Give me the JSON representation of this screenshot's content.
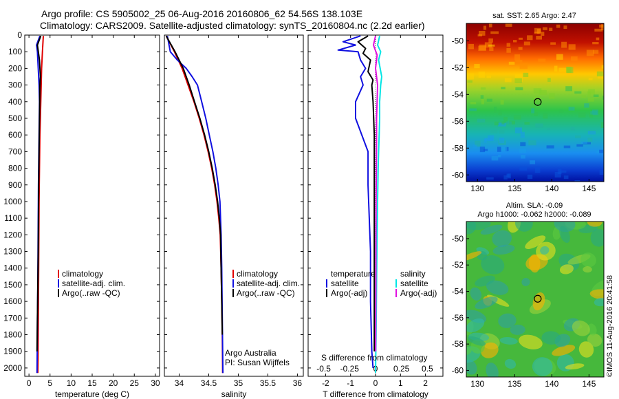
{
  "title_line1": "Argo profile: CS 5905002_25 06-Aug-2016 20160806_62 54.56S 138.103E",
  "title_line2": "Climatology: CARS2009. Satellite-adjusted climatology: synTS_20160804.nc (2.2d earlier)",
  "colors": {
    "climatology": "#e00000",
    "satellite_adj": "#1010e0",
    "argo": "#000000",
    "salinity_sat": "#00e5e5",
    "salinity_argo": "#e010e0"
  },
  "chart_data": [
    {
      "type": "line",
      "name": "temperature-panel",
      "xlabel": "temperature (deg C)",
      "xlim": [
        -1,
        31
      ],
      "ylim": [
        2050,
        0
      ],
      "xticks": [
        "0",
        "5",
        "10",
        "15",
        "20",
        "25",
        "30"
      ],
      "xtick_values": [
        0,
        5,
        10,
        15,
        20,
        25,
        30
      ],
      "yticks": [
        "0",
        "100",
        "200",
        "300",
        "400",
        "500",
        "600",
        "700",
        "800",
        "900",
        "1000",
        "1100",
        "1200",
        "1300",
        "1400",
        "1500",
        "1600",
        "1700",
        "1800",
        "1900",
        "2000"
      ],
      "ytick_values": [
        0,
        100,
        200,
        300,
        400,
        500,
        600,
        700,
        800,
        900,
        1000,
        1100,
        1200,
        1300,
        1400,
        1500,
        1600,
        1700,
        1800,
        1900,
        2000
      ],
      "legend": [
        "climatology",
        "satellite-adj. clim.",
        "Argo(..raw -QC)"
      ],
      "series": [
        {
          "key": "climatology",
          "x": [
            3.4,
            3.2,
            3.0,
            2.9,
            2.8,
            2.7,
            2.6,
            2.55,
            2.5,
            2.45,
            2.4,
            2.35,
            2.3,
            2.25,
            2.2,
            2.15,
            2.1
          ],
          "y": [
            5,
            100,
            200,
            300,
            400,
            500,
            600,
            700,
            800,
            900,
            1000,
            1200,
            1400,
            1600,
            1800,
            1950,
            2030
          ]
        },
        {
          "key": "satellite_adj",
          "x": [
            2.6,
            1.8,
            2.0,
            2.2,
            2.4,
            2.5,
            2.45,
            2.4,
            2.35,
            2.3,
            2.25,
            2.2,
            2.15,
            2.1,
            2.0,
            1.95,
            1.9
          ],
          "y": [
            5,
            60,
            100,
            200,
            300,
            400,
            500,
            600,
            700,
            800,
            900,
            1100,
            1300,
            1500,
            1700,
            1900,
            2030
          ]
        },
        {
          "key": "argo",
          "x": [
            2.8,
            2.0,
            2.5,
            2.7,
            2.6,
            2.55,
            2.5,
            2.45,
            2.4,
            2.35,
            2.3,
            2.25,
            2.2,
            2.1,
            2.0,
            1.9
          ],
          "y": [
            5,
            60,
            150,
            250,
            300,
            400,
            500,
            600,
            700,
            800,
            900,
            1100,
            1300,
            1500,
            1700,
            1900
          ]
        }
      ]
    },
    {
      "type": "line",
      "name": "salinity-panel",
      "xlabel": "salinity",
      "xlim": [
        33.75,
        36.1
      ],
      "ylim": [
        2050,
        0
      ],
      "xticks": [
        "34",
        "34.5",
        "35",
        "35.5",
        "36"
      ],
      "xtick_values": [
        34,
        34.5,
        35,
        35.5,
        36
      ],
      "legend": [
        "climatology",
        "satellite-adj. clim.",
        "Argo(..raw -QC)"
      ],
      "annotations": [
        "Argo Australia",
        "PI: Susan Wijffels"
      ],
      "series": [
        {
          "key": "climatology",
          "x": [
            33.78,
            33.92,
            34.05,
            34.15,
            34.25,
            34.34,
            34.42,
            34.49,
            34.55,
            34.6,
            34.64,
            34.67,
            34.695,
            34.71,
            34.72,
            34.73,
            34.735
          ],
          "y": [
            5,
            100,
            200,
            300,
            400,
            500,
            600,
            700,
            800,
            900,
            1000,
            1100,
            1200,
            1400,
            1600,
            1800,
            2030
          ]
        },
        {
          "key": "satellite_adj",
          "x": [
            33.8,
            33.85,
            33.97,
            34.12,
            34.22,
            34.31,
            34.38,
            34.45,
            34.51,
            34.57,
            34.62,
            34.66,
            34.69,
            34.71,
            34.72,
            34.73,
            34.74
          ],
          "y": [
            5,
            100,
            150,
            200,
            250,
            300,
            400,
            500,
            600,
            700,
            800,
            900,
            1000,
            1200,
            1400,
            1700,
            2030
          ]
        },
        {
          "key": "argo",
          "x": [
            33.78,
            33.93,
            34.07,
            34.17,
            34.26,
            34.35,
            34.43,
            34.5,
            34.56,
            34.61,
            34.65,
            34.68,
            34.7,
            34.71,
            34.72,
            34.73
          ],
          "y": [
            5,
            100,
            200,
            300,
            400,
            500,
            600,
            700,
            800,
            900,
            1000,
            1100,
            1200,
            1400,
            1600,
            1800
          ]
        }
      ]
    },
    {
      "type": "line",
      "name": "difference-panel",
      "xlabel": "T difference from climatology",
      "xlim": [
        -2.7,
        2.7
      ],
      "ylim": [
        2050,
        0
      ],
      "xticks": [
        "-2",
        "-1",
        "0",
        "1",
        "2"
      ],
      "xtick_values": [
        -2,
        -1,
        0,
        1,
        2
      ],
      "top_axis_label": "S difference from climatology",
      "top_xticks": [
        "-0.5",
        "-0.25",
        "0",
        "0.25",
        "0.5"
      ],
      "top_xtick_values": [
        -0.5,
        -0.25,
        0,
        0.25,
        0.5
      ],
      "legend_left_header": "temperature",
      "legend_left": [
        "satellite",
        "Argo(-adj)"
      ],
      "legend_right_header": "salinity",
      "legend_right": [
        "satellite",
        "Argo(-adj)"
      ],
      "series": [
        {
          "key": "t_satellite",
          "x": [
            -0.6,
            -1.3,
            -0.8,
            -1.5,
            -0.7,
            -0.6,
            -0.4,
            -0.6,
            -0.5,
            -0.8,
            -0.8,
            -0.3,
            -0.3,
            -0.25,
            -0.2,
            -0.2,
            -0.15,
            -0.1
          ],
          "y": [
            5,
            40,
            60,
            90,
            100,
            150,
            200,
            250,
            300,
            400,
            500,
            700,
            900,
            1100,
            1300,
            1600,
            1900,
            2000
          ]
        },
        {
          "key": "t_argo",
          "x": [
            -0.3,
            -0.7,
            -0.4,
            -0.5,
            -0.2,
            -0.3,
            -0.1,
            -0.15,
            -0.1,
            -0.05,
            -0.05,
            -0.05,
            -0.05,
            -0.05
          ],
          "y": [
            5,
            40,
            80,
            110,
            150,
            220,
            270,
            300,
            400,
            600,
            900,
            1300,
            1700,
            1900
          ]
        },
        {
          "key": "s_satellite",
          "x": [
            0.04,
            0.02,
            0.05,
            0.03,
            0.06,
            0.05,
            0.04,
            0.04,
            0.035,
            0.03,
            0.025,
            0.02,
            0.015,
            0.01,
            0.005,
            0.0
          ],
          "y": [
            5,
            60,
            100,
            150,
            250,
            300,
            400,
            500,
            600,
            700,
            800,
            1000,
            1200,
            1500,
            1800,
            2030
          ]
        },
        {
          "key": "s_argo",
          "x": [
            0.0,
            -0.02,
            0.015,
            0.0,
            0.02,
            0.015,
            0.01,
            0.01,
            0.008,
            0.005,
            0.004,
            0.003,
            0.002,
            0.001
          ],
          "y": [
            5,
            60,
            120,
            200,
            300,
            400,
            500,
            600,
            800,
            1000,
            1200,
            1500,
            1700,
            1900
          ]
        }
      ]
    },
    {
      "type": "heatmap",
      "name": "sst-map",
      "title": "sat. SST: 2.65 Argo: 2.47",
      "xlim": [
        128.5,
        147
      ],
      "ylim": [
        -60.5,
        -48.7
      ],
      "xticks": [
        "130",
        "135",
        "140",
        "145"
      ],
      "xtick_values": [
        130,
        135,
        140,
        145
      ],
      "yticks": [
        "-50",
        "-52",
        "-54",
        "-56",
        "-58",
        "-60"
      ],
      "ytick_values": [
        -50,
        -52,
        -54,
        -56,
        -58,
        -60
      ],
      "marker": {
        "lon": 138.103,
        "lat": -54.56
      }
    },
    {
      "type": "heatmap",
      "name": "sla-map",
      "title": "Altim. SLA: -0.09",
      "subtitle": "Argo h1000: -0.062 h2000: -0.089",
      "xlim": [
        128.5,
        147
      ],
      "ylim": [
        -60.5,
        -48.7
      ],
      "xticks": [
        "130",
        "135",
        "140",
        "145"
      ],
      "xtick_values": [
        130,
        135,
        140,
        145
      ],
      "yticks": [
        "-50",
        "-52",
        "-54",
        "-56",
        "-58",
        "-60"
      ],
      "ytick_values": [
        -50,
        -52,
        -54,
        -56,
        -58,
        -60
      ],
      "marker": {
        "lon": 138.103,
        "lat": -54.56
      }
    }
  ],
  "watermark": "©IMOS 11-Aug-2016 20:41:58"
}
